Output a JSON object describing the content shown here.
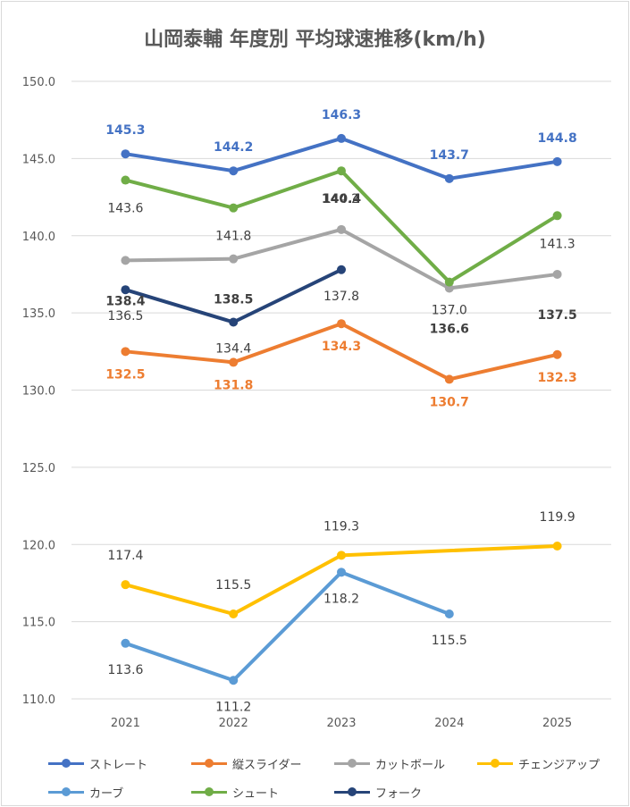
{
  "chart_data": {
    "type": "line",
    "title": "山岡泰輔 年度別 平均球速推移(km/h)",
    "categories": [
      "2021",
      "2022",
      "2023",
      "2024",
      "2025"
    ],
    "ylim": [
      110.0,
      150.0
    ],
    "yticks": [
      "110.0",
      "115.0",
      "120.0",
      "125.0",
      "130.0",
      "135.0",
      "140.0",
      "145.0",
      "150.0"
    ],
    "grid": true,
    "legend_position": "bottom",
    "series": [
      {
        "name": "ストレート",
        "color": "#4472c4",
        "values": [
          145.3,
          144.2,
          146.3,
          143.7,
          144.8
        ],
        "labels": [
          "145.3",
          "144.2",
          "146.3",
          "143.7",
          "144.8"
        ]
      },
      {
        "name": "縦スライダー",
        "color": "#ed7d31",
        "values": [
          132.5,
          131.8,
          134.3,
          130.7,
          132.3
        ],
        "labels": [
          "132.5",
          "131.8",
          "134.3",
          "130.7",
          "132.3"
        ]
      },
      {
        "name": "カットボール",
        "color": "#a5a5a5",
        "values": [
          138.4,
          138.5,
          140.4,
          136.6,
          137.5
        ],
        "labels": [
          "138.4",
          "138.5",
          "140.4",
          "136.6",
          "137.5"
        ]
      },
      {
        "name": "チェンジアップ",
        "color": "#ffc000",
        "values": [
          117.4,
          115.5,
          119.3,
          null,
          119.9
        ],
        "labels": [
          "117.4",
          "115.5",
          "119.3",
          null,
          "119.9"
        ]
      },
      {
        "name": "カーブ",
        "color": "#5b9bd5",
        "values": [
          113.6,
          111.2,
          118.2,
          115.5,
          null
        ],
        "labels": [
          "113.6",
          "111.2",
          "118.2",
          "115.5",
          null
        ]
      },
      {
        "name": "シュート",
        "color": "#70ad47",
        "values": [
          143.6,
          141.8,
          144.2,
          137.0,
          141.3
        ],
        "labels": [
          "143.6",
          "141.8",
          "144.2",
          "137.0",
          "141.3"
        ]
      },
      {
        "name": "フォーク",
        "color": "#264478",
        "values": [
          136.5,
          134.4,
          137.8,
          null,
          null
        ],
        "labels": [
          "136.5",
          "134.4",
          "137.8",
          null,
          null
        ]
      }
    ]
  }
}
